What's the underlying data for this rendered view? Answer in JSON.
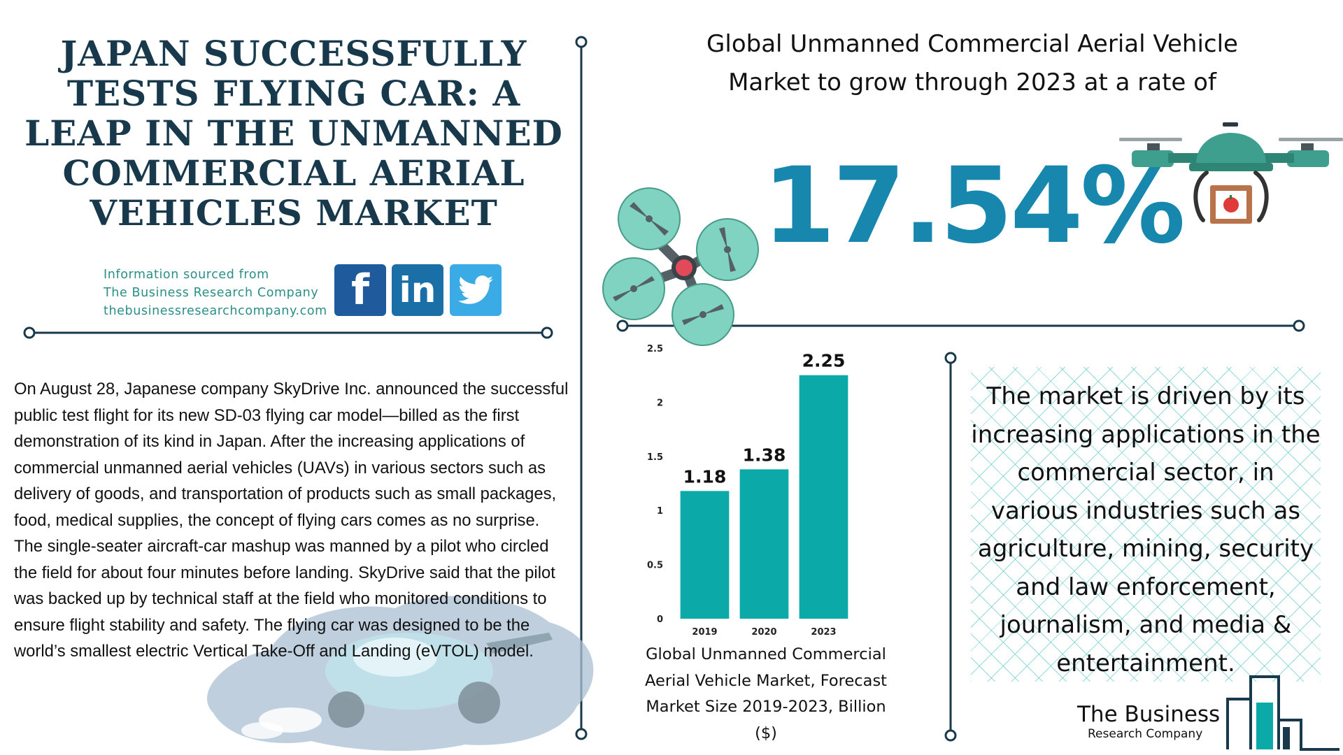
{
  "title": "Japan Successfully Tests Flying Car: A Leap in the Unmanned Commercial Aerial Vehicles Market",
  "source": {
    "line1": "Information sourced from",
    "line2": "The Business Research Company",
    "line3": "thebusinessresearchcompany.com"
  },
  "social": [
    {
      "name": "facebook",
      "glyph": "f"
    },
    {
      "name": "linkedin",
      "glyph": "in"
    },
    {
      "name": "twitter",
      "glyph": "twitter-bird-icon"
    }
  ],
  "body": {
    "paragraph1": "On August 28, Japanese company SkyDrive Inc. announced the successful public test flight for its new SD-03 flying car model—billed as the first demonstration of its kind in Japan. After the increasing applications of commercial unmanned aerial vehicles (UAVs) in various sectors such as delivery of goods, and transportation of products such as small packages, food, medical supplies, the concept of flying cars comes as no surprise.",
    "paragraph2": "The single-seater aircraft-car mashup was manned by a pilot who circled the field for about four minutes before landing. SkyDrive said that the pilot was backed up by technical staff at the field who monitored conditions to ensure flight stability and safety. The flying car was designed to be the world’s smallest electric Vertical Take-Off and Landing (eVTOL) model."
  },
  "headline": "Global Unmanned Commercial Aerial Vehicle Market to grow through 2023 at a rate of",
  "growth_rate": "17.54%",
  "chart_caption": "Global Unmanned Commercial Aerial Vehicle Market, Forecast Market Size 2019-2023, Billion ($)",
  "driver_text": "The market is driven by its increasing applications in the commercial sector, in various industries such as agriculture, mining, security and law enforcement, journalism, and media & entertainment.",
  "brand": {
    "name": "The Business",
    "sub": "Research Company"
  },
  "colors": {
    "title": "#17394b",
    "accent_teal": "#0ba9a8",
    "rate_blue": "#1787ad",
    "source_teal": "#2a8f86",
    "line": "#17394b"
  },
  "chart_data": {
    "type": "bar",
    "categories": [
      "2019",
      "2020",
      "2023"
    ],
    "values": [
      1.18,
      1.38,
      2.25
    ],
    "value_labels": [
      "1.18",
      "1.38",
      "2.25"
    ],
    "yticks": [
      "0",
      "0.5",
      "1",
      "1.5",
      "2",
      "2.5"
    ],
    "ylim": [
      0,
      2.5
    ],
    "title": "",
    "xlabel": "",
    "ylabel": "",
    "grid": false,
    "legend": "none",
    "bar_color": "#0ba9a8"
  }
}
